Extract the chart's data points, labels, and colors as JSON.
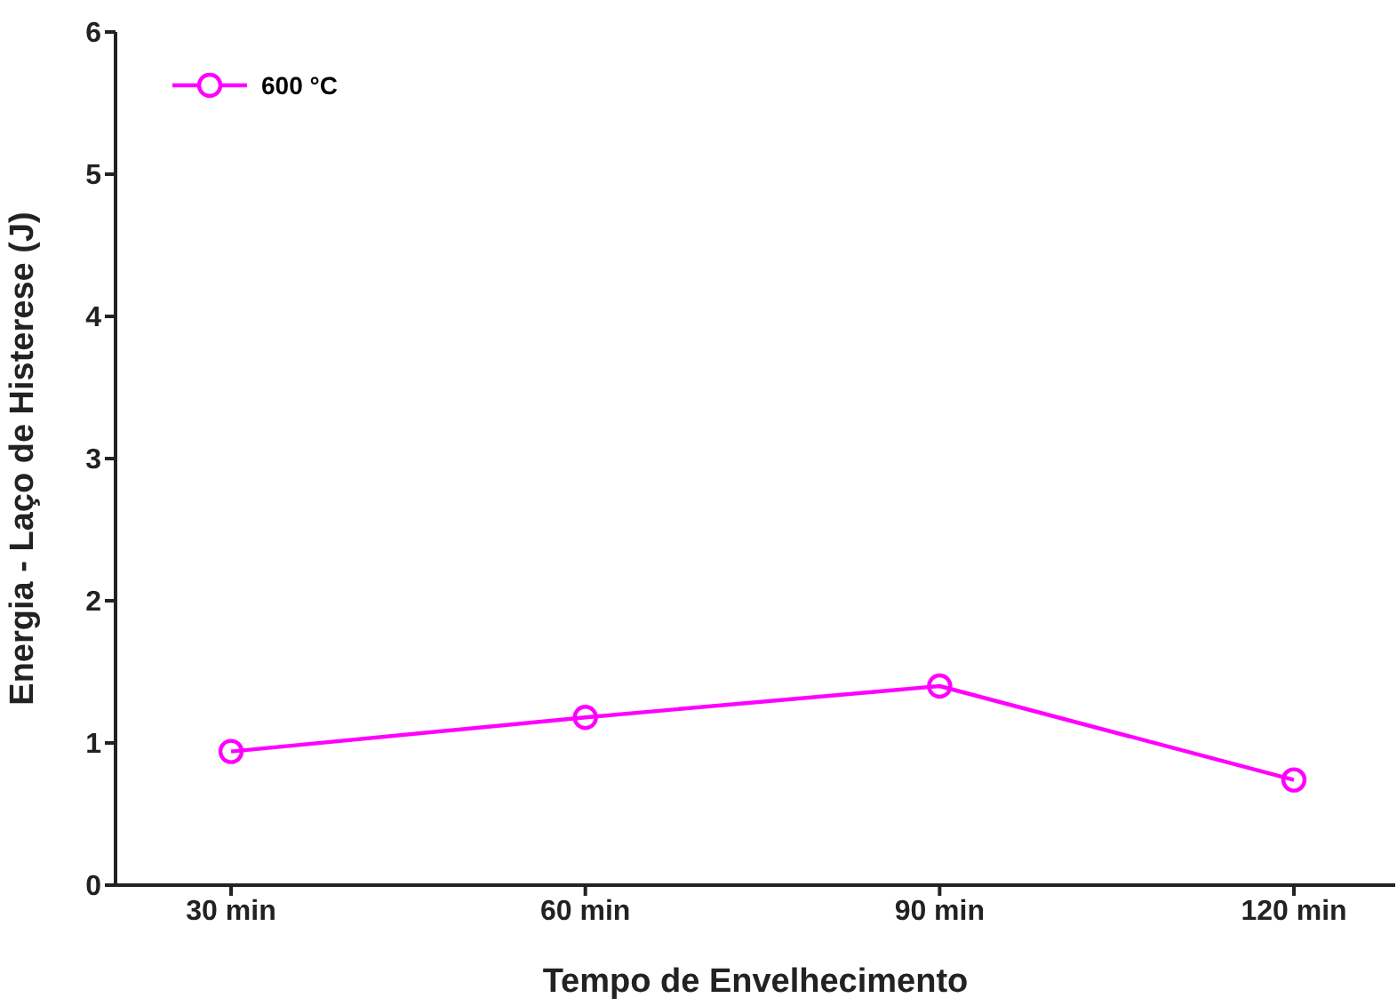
{
  "chart_data": {
    "type": "line",
    "xlabel": "Tempo de Envelhecimento",
    "ylabel": "Energia - Laço de Histerese (J)",
    "categories": [
      "30 min",
      "60 min",
      "90 min",
      "120 min"
    ],
    "series": [
      {
        "name": "600 °C",
        "color": "#ff00ff",
        "values": [
          0.94,
          1.18,
          1.4,
          0.74
        ]
      }
    ],
    "ylim": [
      0,
      6
    ],
    "yticks": [
      0,
      1,
      2,
      3,
      4,
      5,
      6
    ],
    "grid": false,
    "legend": "top left",
    "marker": "circle",
    "line_style": "solid"
  }
}
